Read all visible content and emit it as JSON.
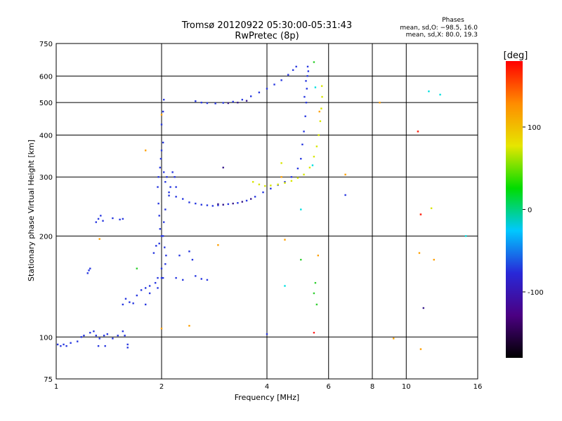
{
  "chart_data": {
    "type": "scatter",
    "title": "Tromsø 20120922 05:30:00-05:31:43",
    "subtitle": "RwPretec (8p)",
    "xlabel": "Frequency [MHz]",
    "ylabel": "Stationary phase Virtual Height [km]",
    "x_scale": "log",
    "y_scale": "log",
    "xlim": [
      1,
      16
    ],
    "ylim": [
      75,
      750
    ],
    "x_ticks": [
      1,
      2,
      4,
      6,
      8,
      10,
      16
    ],
    "y_ticks": [
      75,
      100,
      200,
      300,
      400,
      500,
      600,
      750
    ],
    "grid": true,
    "stats": {
      "heading": "Phases",
      "line_o": "mean, sd,O: −98.5, 16.0",
      "line_x": "mean, sd,X:  80.0, 19.3"
    },
    "colorbar": {
      "label": "[deg]",
      "range": [
        -180,
        180
      ],
      "ticks": [
        100,
        0,
        -100
      ],
      "palette": [
        "#000000",
        "#4b0082",
        "#2828d8",
        "#00c8ff",
        "#00dc00",
        "#e6e600",
        "#ff8c00",
        "#ff0000"
      ]
    },
    "series": [
      {
        "color": "#2838e0",
        "points": [
          [
            1.01,
            95
          ],
          [
            1.03,
            94
          ],
          [
            1.05,
            95
          ],
          [
            1.07,
            94
          ],
          [
            1.1,
            96
          ],
          [
            1.15,
            97
          ],
          [
            1.18,
            100
          ],
          [
            1.2,
            101
          ],
          [
            1.25,
            103
          ],
          [
            1.28,
            104
          ],
          [
            1.3,
            101
          ],
          [
            1.33,
            99
          ],
          [
            1.37,
            101
          ],
          [
            1.4,
            102
          ],
          [
            1.45,
            99
          ],
          [
            1.5,
            101
          ],
          [
            1.55,
            104
          ],
          [
            1.57,
            101
          ],
          [
            1.6,
            95
          ],
          [
            1.32,
            94
          ],
          [
            1.38,
            94
          ],
          [
            1.6,
            93
          ],
          [
            1.23,
            155
          ],
          [
            1.25,
            160
          ],
          [
            1.24,
            158
          ],
          [
            1.3,
            220
          ],
          [
            1.32,
            225
          ],
          [
            1.34,
            230
          ],
          [
            1.36,
            222
          ],
          [
            1.45,
            226
          ],
          [
            1.52,
            224
          ],
          [
            1.55,
            225
          ],
          [
            1.55,
            125
          ],
          [
            1.58,
            130
          ],
          [
            1.62,
            127
          ],
          [
            1.66,
            126
          ],
          [
            1.7,
            133
          ],
          [
            1.75,
            138
          ],
          [
            1.8,
            140
          ],
          [
            1.85,
            142
          ],
          [
            1.92,
            145
          ],
          [
            1.95,
            150
          ],
          [
            2.0,
            150
          ],
          [
            1.9,
            178
          ],
          [
            1.93,
            187
          ],
          [
            1.97,
            190
          ],
          [
            2.0,
            200
          ],
          [
            1.98,
            210
          ],
          [
            1.97,
            230
          ],
          [
            1.96,
            250
          ],
          [
            1.95,
            280
          ],
          [
            1.96,
            300
          ],
          [
            1.98,
            320
          ],
          [
            1.99,
            340
          ],
          [
            2.0,
            360
          ],
          [
            2.02,
            380
          ],
          [
            2.03,
            310
          ],
          [
            2.05,
            290
          ],
          [
            2.07,
            300
          ],
          [
            2.1,
            270
          ],
          [
            2.12,
            280
          ],
          [
            2.15,
            310
          ],
          [
            2.18,
            300
          ],
          [
            2.2,
            280
          ],
          [
            2.05,
            240
          ],
          [
            2.03,
            220
          ],
          [
            2.02,
            200
          ],
          [
            2.04,
            185
          ],
          [
            2.06,
            175
          ],
          [
            2.05,
            165
          ],
          [
            2.2,
            150
          ],
          [
            2.3,
            148
          ],
          [
            2.5,
            152
          ],
          [
            2.6,
            149
          ],
          [
            2.7,
            148
          ],
          [
            2.0,
            160
          ],
          [
            2.02,
            150
          ],
          [
            2.0,
            430
          ],
          [
            2.02,
            470
          ],
          [
            2.03,
            510
          ],
          [
            2.1,
            264
          ],
          [
            2.2,
            262
          ],
          [
            2.3,
            258
          ],
          [
            2.4,
            252
          ],
          [
            2.5,
            250
          ],
          [
            2.6,
            248
          ],
          [
            2.7,
            247
          ],
          [
            2.8,
            246
          ],
          [
            2.9,
            247
          ],
          [
            3.0,
            248
          ],
          [
            3.1,
            249
          ],
          [
            3.3,
            251
          ],
          [
            3.5,
            255
          ],
          [
            3.7,
            262
          ],
          [
            3.9,
            270
          ],
          [
            4.1,
            277
          ],
          [
            4.3,
            284
          ],
          [
            4.5,
            290
          ],
          [
            4.7,
            300
          ],
          [
            4.9,
            318
          ],
          [
            5.0,
            340
          ],
          [
            5.05,
            375
          ],
          [
            5.1,
            410
          ],
          [
            5.15,
            455
          ],
          [
            5.18,
            500
          ],
          [
            5.2,
            550
          ],
          [
            5.22,
            600
          ],
          [
            5.23,
            640
          ],
          [
            5.25,
            620
          ],
          [
            5.17,
            580
          ],
          [
            5.12,
            520
          ],
          [
            2.5,
            505
          ],
          [
            2.6,
            500
          ],
          [
            2.7,
            498
          ],
          [
            2.85,
            497
          ],
          [
            3.0,
            499
          ],
          [
            3.2,
            503
          ],
          [
            3.4,
            510
          ],
          [
            3.6,
            522
          ],
          [
            3.8,
            536
          ],
          [
            4.0,
            550
          ],
          [
            4.2,
            566
          ],
          [
            4.4,
            583
          ],
          [
            4.6,
            605
          ],
          [
            4.75,
            625
          ],
          [
            4.85,
            640
          ],
          [
            2.4,
            180
          ],
          [
            2.45,
            170
          ],
          [
            2.25,
            175
          ],
          [
            1.8,
            125
          ],
          [
            1.85,
            135
          ],
          [
            1.95,
            140
          ],
          [
            4.0,
            102
          ],
          [
            6.7,
            265
          ]
        ]
      },
      {
        "color": "#3a1c8c",
        "points": [
          [
            2.9,
            249
          ],
          [
            3.0,
            248
          ],
          [
            3.2,
            250
          ],
          [
            3.4,
            253
          ],
          [
            3.6,
            258
          ],
          [
            3.3,
            500
          ],
          [
            3.1,
            498
          ],
          [
            3.5,
            506
          ],
          [
            3.0,
            320
          ],
          [
            11.2,
            122
          ]
        ]
      },
      {
        "color": "#d8e600",
        "points": [
          [
            3.65,
            290
          ],
          [
            3.8,
            285
          ],
          [
            3.95,
            282
          ],
          [
            4.1,
            283
          ],
          [
            4.3,
            285
          ],
          [
            4.5,
            288
          ],
          [
            4.7,
            292
          ],
          [
            4.9,
            298
          ],
          [
            5.1,
            305
          ],
          [
            5.3,
            320
          ],
          [
            5.45,
            345
          ],
          [
            5.55,
            370
          ],
          [
            5.62,
            400
          ],
          [
            5.68,
            440
          ],
          [
            5.72,
            480
          ],
          [
            5.75,
            520
          ],
          [
            5.74,
            560
          ],
          [
            4.4,
            330
          ],
          [
            11.8,
            242
          ]
        ]
      },
      {
        "color": "#ffa000",
        "points": [
          [
            4.5,
            195
          ],
          [
            5.6,
            175
          ],
          [
            5.65,
            470
          ],
          [
            6.7,
            305
          ],
          [
            10.8,
            410
          ],
          [
            11.0,
            232
          ],
          [
            10.9,
            178
          ],
          [
            12.0,
            170
          ],
          [
            11.0,
            92
          ],
          [
            2.0,
            106
          ],
          [
            1.8,
            360
          ],
          [
            2.0,
            460
          ],
          [
            9.2,
            99
          ],
          [
            8.4,
            500
          ],
          [
            2.9,
            188
          ],
          [
            1.33,
            196
          ],
          [
            2.4,
            108
          ],
          [
            4.4,
            300
          ]
        ]
      },
      {
        "color": "#ff2020",
        "points": [
          [
            10.8,
            410
          ],
          [
            11.0,
            232
          ],
          [
            5.45,
            103
          ]
        ]
      },
      {
        "color": "#00e0e0",
        "points": [
          [
            11.6,
            540
          ],
          [
            12.5,
            528
          ],
          [
            5.4,
            325
          ],
          [
            5.5,
            555
          ],
          [
            4.5,
            142
          ],
          [
            5.0,
            240
          ],
          [
            14.8,
            200
          ]
        ]
      },
      {
        "color": "#30d030",
        "points": [
          [
            5.45,
            660
          ],
          [
            5.5,
            145
          ],
          [
            5.55,
            125
          ],
          [
            5.45,
            135
          ],
          [
            1.7,
            160
          ],
          [
            5.0,
            170
          ]
        ]
      }
    ]
  }
}
